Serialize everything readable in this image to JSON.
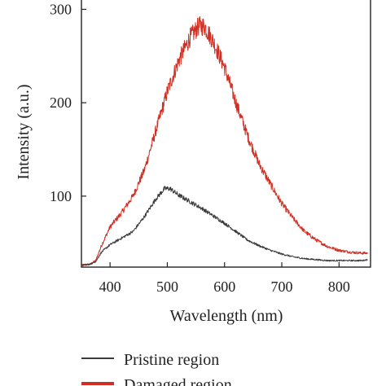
{
  "chart_data": {
    "type": "line",
    "xlabel": "Wavelength (nm)",
    "ylabel": "Intensity (a.u.)",
    "xlim": [
      350,
      855
    ],
    "ylim": [
      24,
      310
    ],
    "x_ticks": [
      400,
      500,
      600,
      700,
      800
    ],
    "y_ticks": [
      100,
      200,
      300
    ],
    "legend_position": "bottom",
    "series": [
      {
        "name": "Pristine region",
        "color": "#3a3a3a",
        "noise": 6,
        "x": [
          350,
          365,
          375,
          385,
          400,
          420,
          440,
          460,
          480,
          495,
          505,
          520,
          540,
          560,
          580,
          600,
          620,
          640,
          660,
          680,
          700,
          720,
          740,
          760,
          780,
          800,
          820,
          840,
          850
        ],
        "values": [
          26,
          27,
          30,
          40,
          48,
          55,
          62,
          78,
          97,
          108,
          108,
          101,
          94,
          87,
          79,
          71,
          62,
          53,
          47,
          42,
          38,
          35,
          33,
          32,
          31,
          31,
          31,
          31,
          32
        ]
      },
      {
        "name": "Damaged region",
        "color": "#d03024",
        "noise": 9,
        "x": [
          350,
          365,
          375,
          385,
          400,
          420,
          440,
          460,
          480,
          500,
          520,
          540,
          555,
          565,
          580,
          600,
          620,
          640,
          660,
          680,
          700,
          720,
          740,
          760,
          780,
          800,
          820,
          840,
          850
        ],
        "values": [
          26,
          27,
          31,
          47,
          67,
          82,
          100,
          128,
          170,
          212,
          245,
          270,
          282,
          282,
          266,
          238,
          200,
          165,
          135,
          113,
          92,
          76,
          62,
          53,
          46,
          42,
          40,
          39,
          39
        ]
      }
    ]
  }
}
